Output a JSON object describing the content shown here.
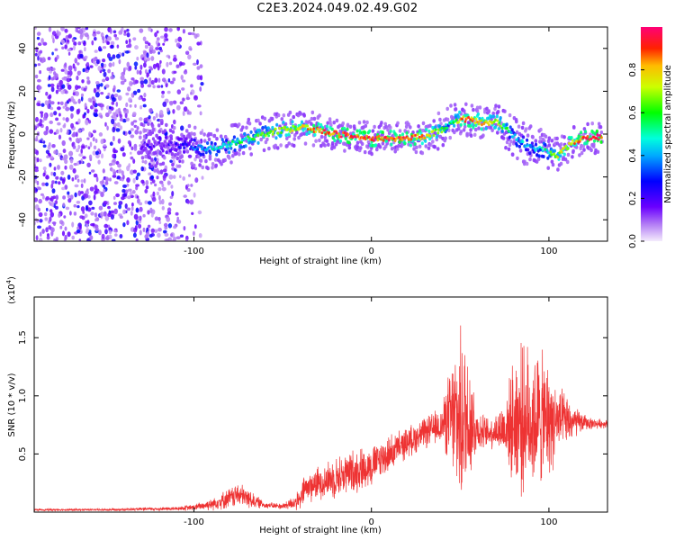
{
  "title": "C2E3.2024.049.02.49.G02",
  "chart_data": [
    {
      "type": "heatmap",
      "xlabel": "Height of straight line (km)",
      "ylabel": "Frequency (Hz)",
      "xlim": [
        -190,
        133
      ],
      "ylim": [
        -50,
        50
      ],
      "x_ticks": [
        -100,
        0,
        100
      ],
      "y_ticks": [
        -40,
        -20,
        0,
        20,
        40
      ],
      "colorbar": {
        "label": "Normalized spectral amplitude",
        "range": [
          0,
          1
        ],
        "ticks": [
          "0.0",
          "0.2",
          "0.4",
          "0.6",
          "0.8"
        ],
        "tick_values": [
          0.0,
          0.2,
          0.4,
          0.6,
          0.8
        ]
      },
      "ridge": {
        "x": [
          -130,
          -110,
          -100,
          -90,
          -80,
          -70,
          -60,
          -50,
          -40,
          -30,
          -20,
          -10,
          0,
          10,
          20,
          30,
          40,
          45,
          50,
          55,
          60,
          65,
          70,
          75,
          80,
          85,
          90,
          95,
          100,
          105,
          110,
          115,
          120,
          125,
          130
        ],
        "freq": [
          -5,
          -5,
          -6,
          -7,
          -5,
          -2,
          0,
          2,
          3,
          2,
          0,
          -1,
          -2,
          -2,
          -2,
          -1,
          2,
          5,
          7,
          7,
          6,
          5,
          6,
          3,
          -1,
          -4,
          -6,
          -7,
          -8,
          -10,
          -6,
          -3,
          -2,
          -2,
          -1
        ],
        "amplitude": [
          0.15,
          0.2,
          0.3,
          0.45,
          0.5,
          0.55,
          0.6,
          0.7,
          0.75,
          0.85,
          0.9,
          0.9,
          0.9,
          0.9,
          0.88,
          0.8,
          0.6,
          0.5,
          0.8,
          0.85,
          0.8,
          0.75,
          0.7,
          0.55,
          0.45,
          0.4,
          0.35,
          0.4,
          0.55,
          0.7,
          0.75,
          0.8,
          0.9,
          0.92,
          0.95
        ]
      },
      "noise_region": [
        -190,
        -95
      ]
    },
    {
      "type": "line",
      "xlabel": "Height of straight line (km)",
      "ylabel": "SNR (10 * v/v)",
      "y_multiplier": "(x10⁴)",
      "y_multiplier_base": "(x10",
      "y_multiplier_exp": "4",
      "y_multiplier_close": ")",
      "xlim": [
        -190,
        133
      ],
      "ylim": [
        0,
        1.85
      ],
      "x_ticks": [
        -100,
        0,
        100
      ],
      "y_ticks": [
        0.5,
        1.0,
        1.5
      ],
      "y_tick_labels": [
        "0.5",
        "1.0",
        "1.5"
      ],
      "color": "#ee3333",
      "envelope": {
        "x": [
          -190,
          -150,
          -110,
          -100,
          -90,
          -80,
          -75,
          -70,
          -60,
          -50,
          -40,
          -38,
          -30,
          -20,
          -10,
          0,
          10,
          20,
          30,
          40,
          42,
          45,
          48,
          50,
          52,
          55,
          58,
          60,
          65,
          70,
          75,
          78,
          80,
          82,
          85,
          90,
          95,
          100,
          105,
          110,
          115,
          120,
          125,
          133
        ],
        "mean": [
          0.02,
          0.02,
          0.03,
          0.04,
          0.07,
          0.12,
          0.15,
          0.12,
          0.06,
          0.05,
          0.1,
          0.2,
          0.25,
          0.3,
          0.35,
          0.4,
          0.5,
          0.6,
          0.68,
          0.75,
          0.8,
          0.8,
          0.8,
          0.78,
          0.8,
          0.82,
          0.75,
          0.7,
          0.68,
          0.7,
          0.72,
          0.75,
          0.78,
          0.8,
          0.8,
          0.8,
          0.8,
          0.78,
          0.78,
          0.78,
          0.77,
          0.77,
          0.76,
          0.76
        ],
        "spread": [
          0.01,
          0.01,
          0.02,
          0.03,
          0.06,
          0.1,
          0.12,
          0.1,
          0.03,
          0.03,
          0.1,
          0.15,
          0.16,
          0.2,
          0.22,
          0.2,
          0.18,
          0.15,
          0.15,
          0.18,
          0.35,
          0.55,
          0.75,
          0.85,
          0.85,
          0.7,
          0.4,
          0.2,
          0.15,
          0.18,
          0.3,
          0.45,
          0.6,
          0.72,
          0.72,
          0.7,
          0.68,
          0.55,
          0.35,
          0.25,
          0.15,
          0.08,
          0.05,
          0.04
        ]
      }
    }
  ]
}
